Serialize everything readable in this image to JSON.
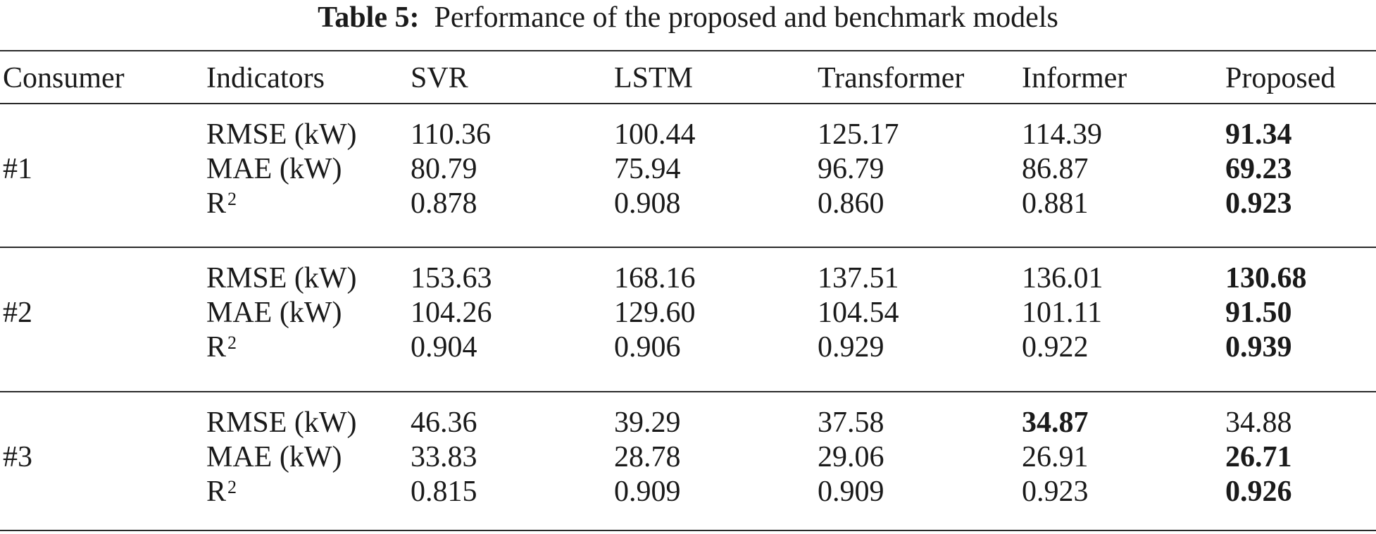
{
  "caption": {
    "label": "Table 5:",
    "text": "Performance of the proposed and benchmark models"
  },
  "columns": [
    "Consumer",
    "Indicators",
    "SVR",
    "LSTM",
    "Transformer",
    "Informer",
    "Proposed"
  ],
  "indicators": {
    "rmse": "RMSE (kW)",
    "mae": "MAE (kW)",
    "r2_base": "R",
    "r2_sup": "2"
  },
  "groups": [
    {
      "consumer": "#1",
      "rows": [
        {
          "svr": "110.36",
          "lstm": "100.44",
          "transformer": "125.17",
          "informer": "114.39",
          "proposed": "91.34",
          "best": "proposed"
        },
        {
          "svr": "80.79",
          "lstm": "75.94",
          "transformer": "96.79",
          "informer": "86.87",
          "proposed": "69.23",
          "best": "proposed"
        },
        {
          "svr": "0.878",
          "lstm": "0.908",
          "transformer": "0.860",
          "informer": "0.881",
          "proposed": "0.923",
          "best": "proposed"
        }
      ]
    },
    {
      "consumer": "#2",
      "rows": [
        {
          "svr": "153.63",
          "lstm": "168.16",
          "transformer": "137.51",
          "informer": "136.01",
          "proposed": "130.68",
          "best": "proposed"
        },
        {
          "svr": "104.26",
          "lstm": "129.60",
          "transformer": "104.54",
          "informer": "101.11",
          "proposed": "91.50",
          "best": "proposed"
        },
        {
          "svr": "0.904",
          "lstm": "0.906",
          "transformer": "0.929",
          "informer": "0.922",
          "proposed": "0.939",
          "best": "proposed"
        }
      ]
    },
    {
      "consumer": "#3",
      "rows": [
        {
          "svr": "46.36",
          "lstm": "39.29",
          "transformer": "37.58",
          "informer": "34.87",
          "proposed": "34.88",
          "best": "informer"
        },
        {
          "svr": "33.83",
          "lstm": "28.78",
          "transformer": "29.06",
          "informer": "26.91",
          "proposed": "26.71",
          "best": "proposed"
        },
        {
          "svr": "0.815",
          "lstm": "0.909",
          "transformer": "0.909",
          "informer": "0.923",
          "proposed": "0.926",
          "best": "proposed"
        }
      ]
    }
  ]
}
